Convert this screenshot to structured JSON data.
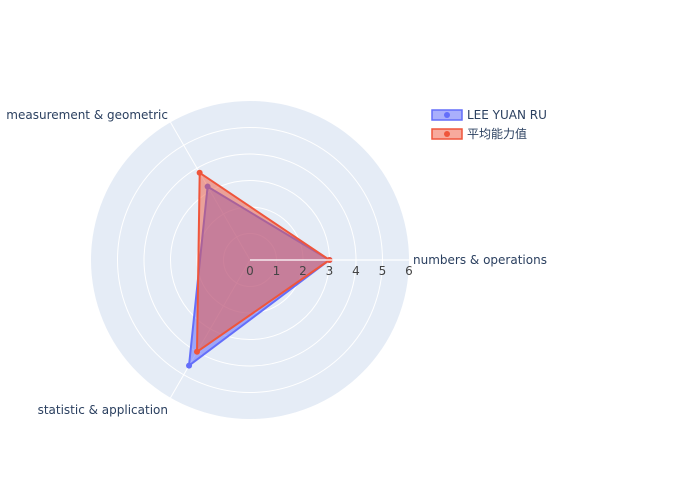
{
  "chart_data": {
    "type": "radar",
    "title": "",
    "axes": [
      "numbers & operations",
      "measurement & geometric",
      "statistic & application"
    ],
    "radial_range": [
      0,
      6
    ],
    "radial_ticks": [
      "0",
      "1",
      "2",
      "3",
      "4",
      "5",
      "6"
    ],
    "grid": true,
    "legend_position": "top-right",
    "series": [
      {
        "name": "LEE YUAN RU",
        "values": [
          3,
          3.2,
          4.6
        ],
        "color": "#636efa"
      },
      {
        "name": "平均能力值",
        "values": [
          3,
          3.8,
          4.0
        ],
        "color": "#ef553b"
      }
    ]
  }
}
